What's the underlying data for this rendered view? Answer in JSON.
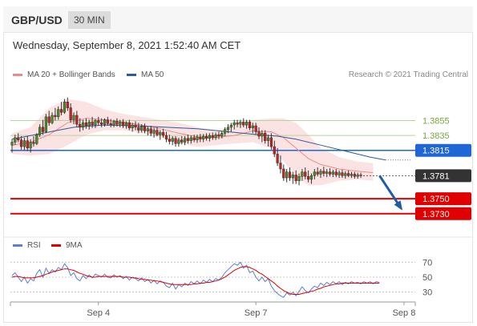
{
  "header": {
    "pair": "GBP/USD",
    "timeframe": "30 MIN"
  },
  "datetime": "Wednesday, September 8, 2021 1:52:40 AM CET",
  "legend": {
    "bollinger": {
      "label": "MA 20 + Bollinger Bands",
      "color": "#f08a8a"
    },
    "ma50": {
      "label": "MA 50",
      "color": "#2c5a9e"
    }
  },
  "credit": "Research © 2021 Trading Central",
  "rsi_legend": {
    "rsi": {
      "label": "RSI",
      "color": "#5b7fd6"
    },
    "ma9": {
      "label": "9MA",
      "color": "#e00000"
    }
  },
  "chart_data": {
    "type": "candlestick",
    "ylim": [
      1.3705,
      1.3905
    ],
    "x_ticks": [
      {
        "label": "Sep 4",
        "index": 28
      },
      {
        "label": "Sep 7",
        "index": 79
      },
      {
        "label": "Sep 8",
        "index": 127
      }
    ],
    "candles": [
      [
        1.3822,
        1.383,
        1.3812,
        1.3826
      ],
      [
        1.3826,
        1.3836,
        1.3822,
        1.3832
      ],
      [
        1.3832,
        1.3838,
        1.3826,
        1.3829
      ],
      [
        1.3829,
        1.3834,
        1.3816,
        1.382
      ],
      [
        1.382,
        1.3832,
        1.3815,
        1.3828
      ],
      [
        1.3828,
        1.3834,
        1.3814,
        1.3818
      ],
      [
        1.3818,
        1.383,
        1.3812,
        1.3826
      ],
      [
        1.3826,
        1.3834,
        1.382,
        1.3824
      ],
      [
        1.3824,
        1.3838,
        1.3822,
        1.3836
      ],
      [
        1.3836,
        1.385,
        1.3833,
        1.3846
      ],
      [
        1.3846,
        1.3856,
        1.3836,
        1.384
      ],
      [
        1.384,
        1.3864,
        1.3838,
        1.386
      ],
      [
        1.386,
        1.3868,
        1.3848,
        1.3852
      ],
      [
        1.3852,
        1.3866,
        1.385,
        1.3862
      ],
      [
        1.3862,
        1.3872,
        1.3855,
        1.386
      ],
      [
        1.386,
        1.3874,
        1.3856,
        1.387
      ],
      [
        1.387,
        1.388,
        1.3862,
        1.3866
      ],
      [
        1.3866,
        1.3884,
        1.3864,
        1.388
      ],
      [
        1.388,
        1.3886,
        1.3868,
        1.3872
      ],
      [
        1.3872,
        1.3878,
        1.3852,
        1.3856
      ],
      [
        1.3856,
        1.3866,
        1.385,
        1.3862
      ],
      [
        1.3862,
        1.3868,
        1.3846,
        1.385
      ],
      [
        1.385,
        1.3858,
        1.384,
        1.3846
      ],
      [
        1.3846,
        1.3856,
        1.3842,
        1.3852
      ],
      [
        1.3852,
        1.3858,
        1.3844,
        1.3848
      ],
      [
        1.3848,
        1.3856,
        1.3843,
        1.3853
      ],
      [
        1.3853,
        1.386,
        1.3845,
        1.3849
      ],
      [
        1.3849,
        1.3857,
        1.3845,
        1.3855
      ],
      [
        1.3855,
        1.386,
        1.3848,
        1.3852
      ],
      [
        1.3852,
        1.3858,
        1.3846,
        1.385
      ],
      [
        1.385,
        1.3858,
        1.3847,
        1.3856
      ],
      [
        1.3856,
        1.386,
        1.3848,
        1.3851
      ],
      [
        1.3851,
        1.3857,
        1.3846,
        1.3849
      ],
      [
        1.3849,
        1.3856,
        1.3846,
        1.3854
      ],
      [
        1.3854,
        1.3858,
        1.3847,
        1.385
      ],
      [
        1.385,
        1.3856,
        1.3846,
        1.3853
      ],
      [
        1.3853,
        1.3857,
        1.3845,
        1.3848
      ],
      [
        1.3848,
        1.3854,
        1.3844,
        1.3852
      ],
      [
        1.3852,
        1.3856,
        1.3842,
        1.3845
      ],
      [
        1.3845,
        1.3852,
        1.384,
        1.3849
      ],
      [
        1.3849,
        1.3854,
        1.3842,
        1.3846
      ],
      [
        1.3846,
        1.3852,
        1.3838,
        1.3842
      ],
      [
        1.3842,
        1.385,
        1.3839,
        1.3847
      ],
      [
        1.3847,
        1.3851,
        1.3838,
        1.3841
      ],
      [
        1.3841,
        1.3847,
        1.3835,
        1.3844
      ],
      [
        1.3844,
        1.3848,
        1.3834,
        1.3838
      ],
      [
        1.3838,
        1.3845,
        1.3832,
        1.3842
      ],
      [
        1.3842,
        1.3846,
        1.3834,
        1.3836
      ],
      [
        1.3836,
        1.3842,
        1.3829,
        1.3839
      ],
      [
        1.3839,
        1.3844,
        1.3832,
        1.3835
      ],
      [
        1.3835,
        1.384,
        1.3826,
        1.383
      ],
      [
        1.383,
        1.3836,
        1.3823,
        1.3827
      ],
      [
        1.3827,
        1.3834,
        1.3822,
        1.3831
      ],
      [
        1.3831,
        1.3834,
        1.382,
        1.3824
      ],
      [
        1.3824,
        1.3832,
        1.382,
        1.3829
      ],
      [
        1.3829,
        1.3834,
        1.3823,
        1.3826
      ],
      [
        1.3826,
        1.3834,
        1.3822,
        1.3831
      ],
      [
        1.3831,
        1.3836,
        1.3824,
        1.3828
      ],
      [
        1.3828,
        1.3835,
        1.3824,
        1.3832
      ],
      [
        1.3832,
        1.3836,
        1.3826,
        1.3829
      ],
      [
        1.3829,
        1.3836,
        1.3825,
        1.3833
      ],
      [
        1.3833,
        1.3837,
        1.3826,
        1.383
      ],
      [
        1.383,
        1.3837,
        1.3826,
        1.3834
      ],
      [
        1.3834,
        1.3838,
        1.3828,
        1.3831
      ],
      [
        1.3831,
        1.3838,
        1.3827,
        1.3835
      ],
      [
        1.3835,
        1.3839,
        1.3829,
        1.3832
      ],
      [
        1.3832,
        1.3839,
        1.3829,
        1.3836
      ],
      [
        1.3836,
        1.384,
        1.383,
        1.3834
      ],
      [
        1.3834,
        1.3841,
        1.3831,
        1.3838
      ],
      [
        1.3838,
        1.3846,
        1.3834,
        1.3843
      ],
      [
        1.3843,
        1.385,
        1.3838,
        1.3846
      ],
      [
        1.3846,
        1.3852,
        1.384,
        1.3849
      ],
      [
        1.3849,
        1.3856,
        1.3843,
        1.3852
      ],
      [
        1.3852,
        1.3856,
        1.3846,
        1.385
      ],
      [
        1.385,
        1.3856,
        1.3845,
        1.3853
      ],
      [
        1.3853,
        1.3858,
        1.3846,
        1.3849
      ],
      [
        1.3849,
        1.3856,
        1.3844,
        1.3853
      ],
      [
        1.3853,
        1.3856,
        1.3842,
        1.3845
      ],
      [
        1.3845,
        1.3852,
        1.3838,
        1.3848
      ],
      [
        1.3848,
        1.3852,
        1.3836,
        1.384
      ],
      [
        1.384,
        1.3846,
        1.383,
        1.3834
      ],
      [
        1.3834,
        1.3842,
        1.3826,
        1.3838
      ],
      [
        1.3838,
        1.3842,
        1.3824,
        1.3828
      ],
      [
        1.3828,
        1.3836,
        1.382,
        1.3832
      ],
      [
        1.3832,
        1.3838,
        1.3816,
        1.382
      ],
      [
        1.382,
        1.3828,
        1.3806,
        1.381
      ],
      [
        1.381,
        1.3818,
        1.3794,
        1.3798
      ],
      [
        1.3798,
        1.3808,
        1.3784,
        1.379
      ],
      [
        1.379,
        1.3796,
        1.3774,
        1.3778
      ],
      [
        1.3778,
        1.379,
        1.3772,
        1.3786
      ],
      [
        1.3786,
        1.3792,
        1.3774,
        1.3778
      ],
      [
        1.3778,
        1.3786,
        1.377,
        1.3782
      ],
      [
        1.3782,
        1.3788,
        1.377,
        1.3774
      ],
      [
        1.3774,
        1.3784,
        1.3768,
        1.378
      ],
      [
        1.378,
        1.379,
        1.3774,
        1.3786
      ],
      [
        1.3786,
        1.3792,
        1.3776,
        1.378
      ],
      [
        1.378,
        1.3788,
        1.3772,
        1.3776
      ],
      [
        1.3776,
        1.3784,
        1.377,
        1.3781
      ],
      [
        1.3781,
        1.379,
        1.3776,
        1.3786
      ],
      [
        1.3786,
        1.3792,
        1.378,
        1.3783
      ],
      [
        1.3783,
        1.379,
        1.3778,
        1.3787
      ],
      [
        1.3787,
        1.3793,
        1.378,
        1.3784
      ],
      [
        1.3784,
        1.379,
        1.3779,
        1.3786
      ],
      [
        1.3786,
        1.3791,
        1.378,
        1.3783
      ],
      [
        1.3783,
        1.3789,
        1.3779,
        1.3786
      ],
      [
        1.3786,
        1.379,
        1.3779,
        1.3782
      ],
      [
        1.3782,
        1.3788,
        1.3778,
        1.3785
      ],
      [
        1.3785,
        1.3789,
        1.3778,
        1.3781
      ],
      [
        1.3781,
        1.3787,
        1.3777,
        1.3784
      ],
      [
        1.3784,
        1.3788,
        1.3779,
        1.3781
      ],
      [
        1.3781,
        1.3786,
        1.3778,
        1.3783
      ],
      [
        1.3783,
        1.3786,
        1.3777,
        1.378
      ],
      [
        1.378,
        1.3785,
        1.3777,
        1.3782
      ],
      [
        1.3782,
        1.3785,
        1.3778,
        1.3781
      ]
    ],
    "ma20": [
      [
        0,
        1.3822
      ],
      [
        6,
        1.3826
      ],
      [
        12,
        1.3836
      ],
      [
        18,
        1.3852
      ],
      [
        24,
        1.3858
      ],
      [
        30,
        1.3856
      ],
      [
        36,
        1.3853
      ],
      [
        42,
        1.3849
      ],
      [
        48,
        1.3844
      ],
      [
        54,
        1.3838
      ],
      [
        60,
        1.3833
      ],
      [
        66,
        1.3832
      ],
      [
        72,
        1.3835
      ],
      [
        78,
        1.3841
      ],
      [
        84,
        1.384
      ],
      [
        88,
        1.3832
      ],
      [
        92,
        1.3818
      ],
      [
        96,
        1.3804
      ],
      [
        100,
        1.3796
      ],
      [
        106,
        1.379
      ],
      [
        112,
        1.3787
      ],
      [
        117,
        1.3785
      ]
    ],
    "bollinger_upper": [
      [
        0,
        1.3838
      ],
      [
        6,
        1.3846
      ],
      [
        12,
        1.3872
      ],
      [
        18,
        1.3884
      ],
      [
        24,
        1.388
      ],
      [
        30,
        1.387
      ],
      [
        36,
        1.3864
      ],
      [
        42,
        1.386
      ],
      [
        48,
        1.3856
      ],
      [
        54,
        1.3852
      ],
      [
        60,
        1.3846
      ],
      [
        66,
        1.3842
      ],
      [
        72,
        1.3848
      ],
      [
        78,
        1.3856
      ],
      [
        84,
        1.3858
      ],
      [
        88,
        1.3858
      ],
      [
        92,
        1.3852
      ],
      [
        96,
        1.3836
      ],
      [
        100,
        1.3818
      ],
      [
        106,
        1.3806
      ],
      [
        112,
        1.38
      ],
      [
        117,
        1.3798
      ]
    ],
    "bollinger_lower": [
      [
        0,
        1.381
      ],
      [
        6,
        1.3808
      ],
      [
        12,
        1.381
      ],
      [
        18,
        1.3822
      ],
      [
        24,
        1.3836
      ],
      [
        30,
        1.3842
      ],
      [
        36,
        1.3842
      ],
      [
        42,
        1.3838
      ],
      [
        48,
        1.3832
      ],
      [
        54,
        1.3824
      ],
      [
        60,
        1.382
      ],
      [
        66,
        1.3822
      ],
      [
        72,
        1.3824
      ],
      [
        78,
        1.3826
      ],
      [
        84,
        1.3818
      ],
      [
        88,
        1.38
      ],
      [
        92,
        1.378
      ],
      [
        96,
        1.3768
      ],
      [
        100,
        1.3768
      ],
      [
        106,
        1.3774
      ],
      [
        112,
        1.3776
      ],
      [
        117,
        1.3774
      ]
    ],
    "ma50": [
      [
        0,
        1.383
      ],
      [
        10,
        1.3838
      ],
      [
        20,
        1.3846
      ],
      [
        30,
        1.3849
      ],
      [
        40,
        1.3848
      ],
      [
        50,
        1.3846
      ],
      [
        60,
        1.3844
      ],
      [
        70,
        1.384
      ],
      [
        80,
        1.3836
      ],
      [
        86,
        1.3834
      ],
      [
        92,
        1.383
      ],
      [
        100,
        1.3822
      ],
      [
        108,
        1.3814
      ],
      [
        116,
        1.3806
      ],
      [
        121,
        1.3802
      ]
    ],
    "levels": [
      {
        "label": "1.3855",
        "value": 1.3855,
        "kind": "resistance",
        "color": "#7aa63a"
      },
      {
        "label": "1.3835",
        "value": 1.3835,
        "kind": "resistance",
        "color": "#7aa63a"
      },
      {
        "label": "1.3815",
        "value": 1.3815,
        "kind": "pivot",
        "color": "#1f66d6"
      },
      {
        "label": "1.3781",
        "value": 1.3781,
        "kind": "last-price",
        "color": "#333333"
      },
      {
        "label": "1.3750",
        "value": 1.375,
        "kind": "support",
        "color": "#e00000"
      },
      {
        "label": "1.3730",
        "value": 1.373,
        "kind": "support",
        "color": "#e00000"
      }
    ],
    "forecast_arrow": {
      "from_index": 117,
      "from_value": 1.3781,
      "to_index": 124,
      "to_value": 1.3737
    },
    "rsi": {
      "ylim": [
        20,
        80
      ],
      "ticks": [
        {
          "label": "70",
          "value": 70
        },
        {
          "label": "50",
          "value": 50
        },
        {
          "label": "30",
          "value": 30
        }
      ],
      "values": [
        52,
        56,
        50,
        44,
        50,
        42,
        48,
        45,
        55,
        60,
        50,
        62,
        55,
        60,
        57,
        63,
        60,
        68,
        63,
        52,
        56,
        48,
        45,
        52,
        48,
        53,
        49,
        54,
        52,
        50,
        54,
        50,
        49,
        53,
        50,
        52,
        48,
        51,
        46,
        50,
        48,
        45,
        49,
        44,
        47,
        42,
        46,
        41,
        45,
        43,
        38,
        36,
        42,
        34,
        40,
        37,
        42,
        39,
        44,
        41,
        45,
        41,
        46,
        43,
        47,
        44,
        48,
        46,
        50,
        56,
        60,
        64,
        68,
        66,
        70,
        62,
        66,
        56,
        58,
        50,
        45,
        50,
        44,
        48,
        38,
        32,
        28,
        25,
        23,
        29,
        26,
        30,
        25,
        31,
        37,
        32,
        29,
        34,
        38,
        36,
        42,
        39,
        43,
        40,
        44,
        41,
        44,
        40,
        43,
        41,
        44,
        42,
        43,
        41,
        44,
        42,
        44,
        41,
        44,
        43
      ],
      "ma9": [
        50,
        51,
        51,
        50,
        49,
        49,
        49,
        49,
        50,
        51,
        52,
        54,
        55,
        57,
        58,
        59,
        60,
        61,
        61,
        60,
        59,
        57,
        55,
        54,
        52,
        51,
        50,
        50,
        51,
        51,
        51,
        51,
        51,
        51,
        51,
        51,
        50,
        50,
        50,
        49,
        49,
        48,
        47,
        47,
        46,
        46,
        45,
        45,
        44,
        43,
        42,
        41,
        40,
        40,
        40,
        40,
        40,
        40,
        40,
        41,
        41,
        42,
        42,
        43,
        43,
        44,
        45,
        46,
        48,
        50,
        53,
        56,
        59,
        61,
        63,
        64,
        64,
        63,
        61,
        59,
        56,
        54,
        51,
        48,
        45,
        42,
        38,
        35,
        32,
        30,
        28,
        27,
        27,
        27,
        28,
        29,
        30,
        31,
        32,
        34,
        35,
        37,
        38,
        39,
        40,
        41,
        41,
        42,
        42,
        42,
        42,
        42,
        42,
        42,
        42,
        42,
        42,
        42,
        42,
        42
      ]
    }
  }
}
